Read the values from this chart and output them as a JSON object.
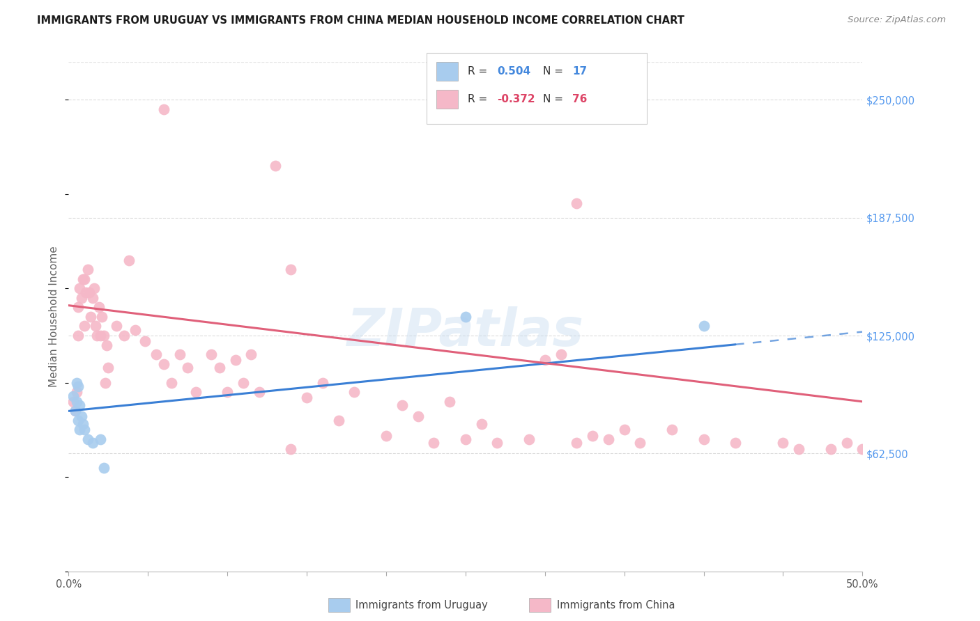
{
  "title": "IMMIGRANTS FROM URUGUAY VS IMMIGRANTS FROM CHINA MEDIAN HOUSEHOLD INCOME CORRELATION CHART",
  "source": "Source: ZipAtlas.com",
  "ylabel": "Median Household Income",
  "xlim": [
    0.0,
    0.5
  ],
  "ylim": [
    0,
    270000
  ],
  "ytick_vals": [
    0,
    62500,
    125000,
    187500,
    250000
  ],
  "ytick_labels": [
    "",
    "$62,500",
    "$125,000",
    "$187,500",
    "$250,000"
  ],
  "xtick_vals": [
    0.0,
    0.05,
    0.1,
    0.15,
    0.2,
    0.25,
    0.3,
    0.35,
    0.4,
    0.45,
    0.5
  ],
  "xtick_labels": [
    "0.0%",
    "",
    "",
    "",
    "",
    "",
    "",
    "",
    "",
    "",
    "50.0%"
  ],
  "background_color": "#ffffff",
  "grid_color": "#cccccc",
  "uruguay_dot_color": "#a8ccee",
  "china_dot_color": "#f5b8c8",
  "uruguay_line_color": "#3a7fd5",
  "china_line_color": "#e0607a",
  "watermark": "ZIPatlas",
  "legend_R_uruguay": "0.504",
  "legend_N_uruguay": "17",
  "legend_R_china": "-0.372",
  "legend_N_china": "76",
  "uruguay_x": [
    0.003,
    0.004,
    0.005,
    0.005,
    0.006,
    0.006,
    0.007,
    0.007,
    0.008,
    0.009,
    0.01,
    0.012,
    0.015,
    0.02,
    0.022,
    0.25,
    0.4
  ],
  "uruguay_y": [
    93000,
    85000,
    90000,
    100000,
    98000,
    80000,
    88000,
    75000,
    82000,
    78000,
    75000,
    70000,
    68000,
    70000,
    55000,
    135000,
    130000
  ],
  "china_x": [
    0.003,
    0.004,
    0.005,
    0.006,
    0.006,
    0.007,
    0.008,
    0.009,
    0.01,
    0.01,
    0.011,
    0.012,
    0.013,
    0.014,
    0.015,
    0.016,
    0.017,
    0.018,
    0.019,
    0.02,
    0.021,
    0.022,
    0.023,
    0.024,
    0.025,
    0.03,
    0.035,
    0.038,
    0.042,
    0.048,
    0.055,
    0.06,
    0.065,
    0.07,
    0.075,
    0.08,
    0.09,
    0.095,
    0.1,
    0.105,
    0.11,
    0.115,
    0.12,
    0.13,
    0.14,
    0.15,
    0.16,
    0.17,
    0.18,
    0.2,
    0.21,
    0.22,
    0.23,
    0.24,
    0.25,
    0.26,
    0.27,
    0.29,
    0.3,
    0.31,
    0.32,
    0.33,
    0.34,
    0.35,
    0.36,
    0.38,
    0.4,
    0.42,
    0.45,
    0.46,
    0.48,
    0.49,
    0.5,
    0.32,
    0.14,
    0.06
  ],
  "china_y": [
    90000,
    85000,
    95000,
    125000,
    140000,
    150000,
    145000,
    155000,
    155000,
    130000,
    148000,
    160000,
    148000,
    135000,
    145000,
    150000,
    130000,
    125000,
    140000,
    125000,
    135000,
    125000,
    100000,
    120000,
    108000,
    130000,
    125000,
    165000,
    128000,
    122000,
    115000,
    110000,
    100000,
    115000,
    108000,
    95000,
    115000,
    108000,
    95000,
    112000,
    100000,
    115000,
    95000,
    215000,
    160000,
    92000,
    100000,
    80000,
    95000,
    72000,
    88000,
    82000,
    68000,
    90000,
    70000,
    78000,
    68000,
    70000,
    112000,
    115000,
    68000,
    72000,
    70000,
    75000,
    68000,
    75000,
    70000,
    68000,
    68000,
    65000,
    65000,
    68000,
    65000,
    195000,
    65000,
    245000
  ]
}
